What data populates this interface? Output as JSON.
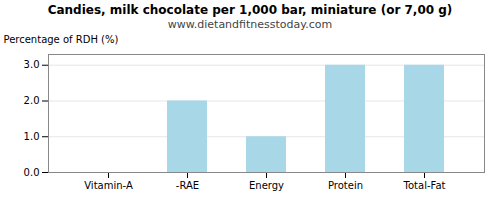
{
  "chart_data": {
    "type": "bar",
    "title": "Candies, milk chocolate per 1,000 bar, miniature (or 7,00 g)",
    "subtitle": "www.dietandfitnesstoday.com",
    "categories": [
      "Vitamin-A",
      "-RAE",
      "Energy",
      "Protein",
      "Total-Fat"
    ],
    "values": [
      0.0,
      2.0,
      1.0,
      3.0,
      3.0
    ],
    "color": "#a8d8e8",
    "ylabel": "Percentage of RDH (%)",
    "ylim": [
      0,
      3.3
    ],
    "yticks": [
      {
        "value": 0.0,
        "label": "0.0"
      },
      {
        "value": 1.0,
        "label": "1.0"
      },
      {
        "value": 2.0,
        "label": "2.0"
      },
      {
        "value": 3.0,
        "label": "3.0"
      }
    ],
    "grid": true
  }
}
